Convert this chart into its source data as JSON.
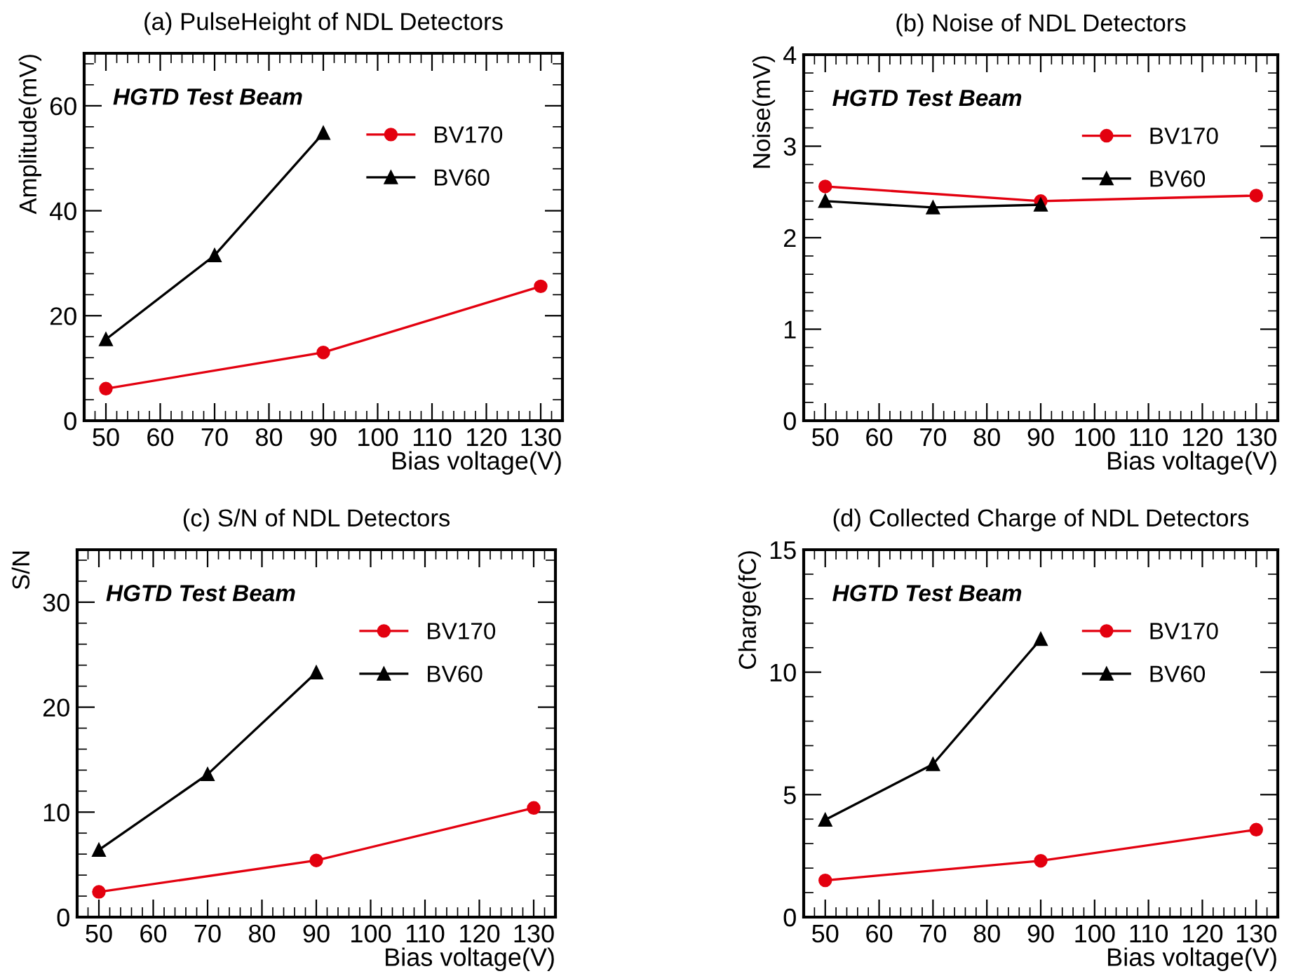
{
  "chart_data": [
    {
      "type": "line",
      "title": "(a) PulseHeight of NDL Detectors",
      "xlabel": "Bias voltage(V)",
      "ylabel": "Amplitude(mV)",
      "annotations": [
        "HGTD Test Beam"
      ],
      "xlim": [
        46,
        134
      ],
      "xticks": [
        50,
        60,
        70,
        80,
        90,
        100,
        110,
        120,
        130
      ],
      "ylim": [
        0,
        70
      ],
      "yticks": [
        0,
        20,
        40,
        60
      ],
      "legend": "top right",
      "grid": false,
      "series": [
        {
          "name": "BV170",
          "color": "#e3000f",
          "marker": "circle",
          "x": [
            50,
            90,
            130
          ],
          "values": [
            6.1,
            13.0,
            25.6
          ]
        },
        {
          "name": "BV60",
          "color": "#000000",
          "marker": "triangle",
          "x": [
            50,
            70,
            90
          ],
          "values": [
            15.5,
            31.5,
            54.8
          ]
        }
      ]
    },
    {
      "type": "line",
      "title": "(b) Noise of NDL Detectors",
      "xlabel": "Bias voltage(V)",
      "ylabel": "Noise(mV)",
      "annotations": [
        "HGTD Test Beam"
      ],
      "xlim": [
        46,
        134
      ],
      "xticks": [
        50,
        60,
        70,
        80,
        90,
        100,
        110,
        120,
        130
      ],
      "ylim": [
        0,
        4
      ],
      "yticks": [
        0,
        1,
        2,
        3,
        4
      ],
      "legend": "top right",
      "grid": false,
      "series": [
        {
          "name": "BV170",
          "color": "#e3000f",
          "marker": "circle",
          "x": [
            50,
            90,
            130
          ],
          "values": [
            2.56,
            2.4,
            2.46
          ]
        },
        {
          "name": "BV60",
          "color": "#000000",
          "marker": "triangle",
          "x": [
            50,
            70,
            90
          ],
          "values": [
            2.4,
            2.33,
            2.36
          ]
        }
      ]
    },
    {
      "type": "line",
      "title": "(c) S/N of NDL Detectors",
      "xlabel": "Bias voltage(V)",
      "ylabel": "S/N",
      "annotations": [
        "HGTD Test Beam"
      ],
      "xlim": [
        46,
        134
      ],
      "xticks": [
        50,
        60,
        70,
        80,
        90,
        100,
        110,
        120,
        130
      ],
      "ylim": [
        0,
        35
      ],
      "yticks": [
        0,
        10,
        20,
        30
      ],
      "legend": "top right",
      "grid": false,
      "series": [
        {
          "name": "BV170",
          "color": "#e3000f",
          "marker": "circle",
          "x": [
            50,
            90,
            130
          ],
          "values": [
            2.4,
            5.4,
            10.4
          ]
        },
        {
          "name": "BV60",
          "color": "#000000",
          "marker": "triangle",
          "x": [
            50,
            70,
            90
          ],
          "values": [
            6.4,
            13.6,
            23.3
          ]
        }
      ]
    },
    {
      "type": "line",
      "title": "(d) Collected Charge of NDL Detectors",
      "xlabel": "Bias voltage(V)",
      "ylabel": "Charge(fC)",
      "annotations": [
        "HGTD Test Beam"
      ],
      "xlim": [
        46,
        134
      ],
      "xticks": [
        50,
        60,
        70,
        80,
        90,
        100,
        110,
        120,
        130
      ],
      "ylim": [
        0,
        15
      ],
      "yticks": [
        0,
        5,
        10,
        15
      ],
      "legend": "top right",
      "grid": false,
      "series": [
        {
          "name": "BV170",
          "color": "#e3000f",
          "marker": "circle",
          "x": [
            50,
            90,
            130
          ],
          "values": [
            1.5,
            2.3,
            3.57
          ]
        },
        {
          "name": "BV60",
          "color": "#000000",
          "marker": "triangle",
          "x": [
            50,
            70,
            90
          ],
          "values": [
            3.97,
            6.24,
            11.35
          ]
        }
      ]
    }
  ]
}
